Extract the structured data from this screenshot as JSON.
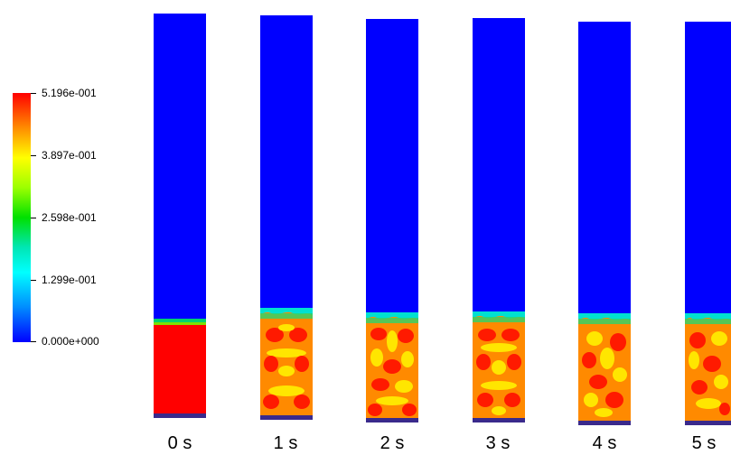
{
  "colorbar": {
    "ticks": [
      "5.196e-001",
      "3.897e-001",
      "2.598e-001",
      "1.299e-001",
      "0.000e+000"
    ]
  },
  "panels": [
    {
      "time": "0 s"
    },
    {
      "time": "1 s"
    },
    {
      "time": "2 s"
    },
    {
      "time": "3 s"
    },
    {
      "time": "4 s"
    },
    {
      "time": "5 s"
    }
  ]
}
